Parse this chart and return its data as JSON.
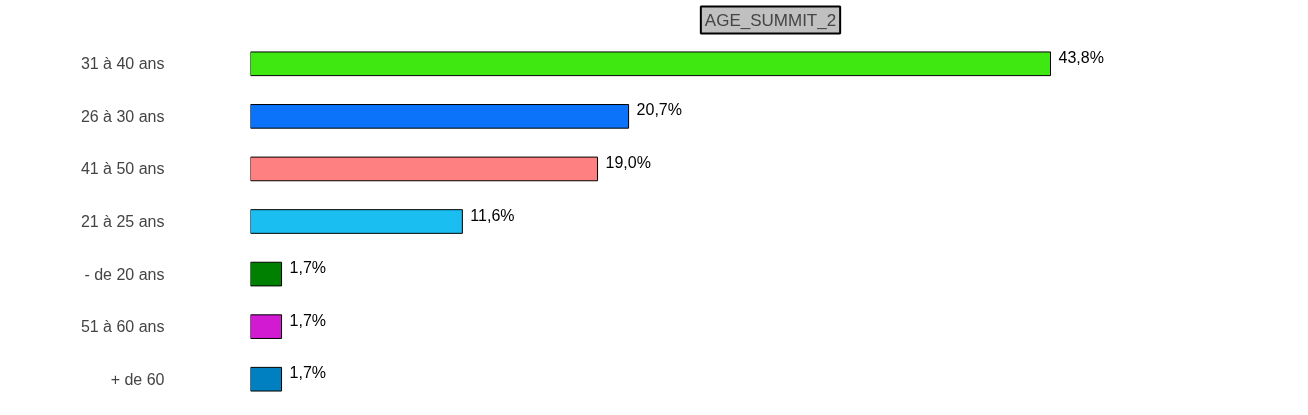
{
  "chart_data": {
    "type": "bar",
    "orientation": "horizontal",
    "title": "AGE_SUMMIT_2",
    "categories": [
      "31 à 40 ans",
      "26 à 30 ans",
      "41 à 50 ans",
      "21 à 25 ans",
      "- de 20 ans",
      "51 à 60 ans",
      "+ de 60"
    ],
    "values": [
      43.8,
      20.7,
      19.0,
      11.6,
      1.7,
      1.7,
      1.7
    ],
    "colors": [
      "#3fe810",
      "#0a73fa",
      "#ff8080",
      "#1abef0",
      "#008000",
      "#d21ad2",
      "#0080c0"
    ],
    "value_labels": [
      "43,8%",
      "20,7%",
      "19,0%",
      "11,6%",
      "1,7%",
      "1,7%",
      "1,7%"
    ],
    "grid": false
  }
}
